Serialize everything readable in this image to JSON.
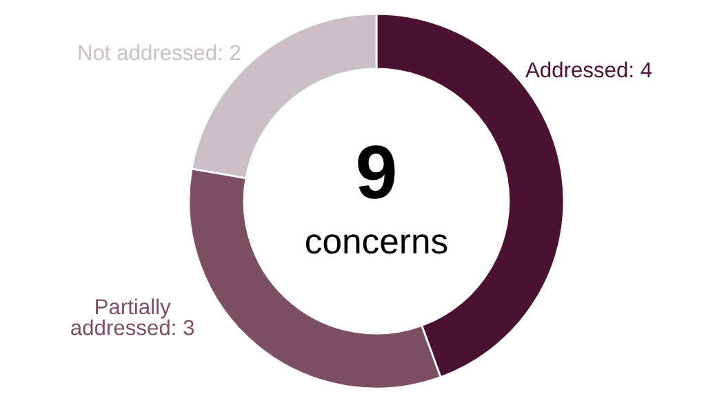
{
  "chart_data": {
    "type": "donut",
    "categories": [
      "Addressed: 4",
      "Partially addressed: 3",
      "Not addressed: 2"
    ],
    "values": [
      4,
      3,
      2
    ],
    "colors": [
      "#4a1230",
      "#7c5062",
      "#c9bfc4"
    ],
    "annotations": [
      "9",
      "concerns"
    ]
  }
}
